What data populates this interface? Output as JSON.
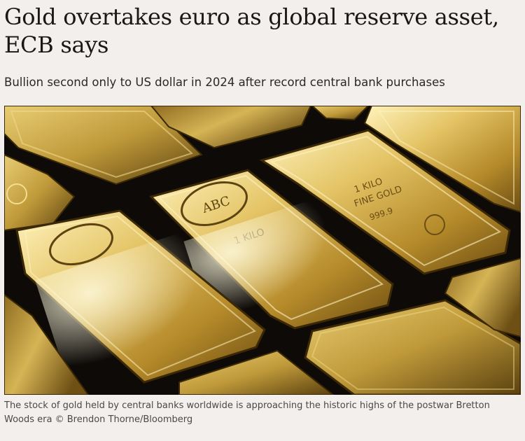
{
  "article": {
    "headline": "Gold overtakes euro as global reserve asset, ECB says",
    "standfirst": "Bullion second only to US dollar in 2024 after record central bank purchases",
    "image": {
      "subject": "gold-bars-photo",
      "bar_engravings": {
        "logo": "ABC",
        "weight": "1 KILO",
        "metal": "FINE GOLD",
        "purity": "999.9"
      }
    },
    "caption": "The stock of gold held by central banks worldwide is approaching the historic highs of the postwar Bretton Woods era © Brendon Thorne/Bloomberg"
  },
  "colors": {
    "background": "#f2efed",
    "headline": "#1a1817",
    "caption": "#4d4845",
    "gold_light": "#f6e6a0",
    "gold_mid": "#c9a740",
    "gold_dark": "#5e4410"
  }
}
